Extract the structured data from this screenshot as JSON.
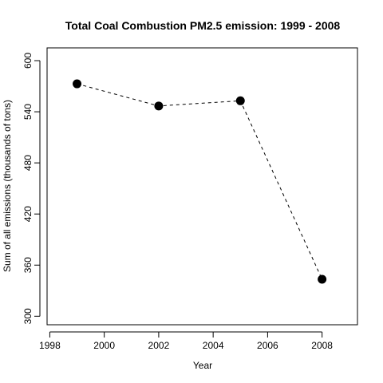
{
  "chart_data": {
    "type": "line",
    "title": "Total Coal Combustion PM2.5 emission: 1999 - 2008",
    "xlabel": "Year",
    "ylabel": "Sum of all emissions (thousands of tons)",
    "x": [
      1999,
      2002,
      2005,
      2008
    ],
    "y": [
      572.8,
      546.8,
      552.9,
      343.4
    ],
    "xlim": [
      1997.9,
      2009.3
    ],
    "ylim": [
      290,
      615
    ],
    "xticks": [
      1998,
      2000,
      2002,
      2004,
      2006,
      2008
    ],
    "yticks": [
      300,
      360,
      420,
      480,
      540,
      600
    ],
    "line_style": "dashed",
    "marker": "filled-circle",
    "grid": false,
    "colors": {
      "line": "#000000",
      "marker": "#000000",
      "axes": "#000000"
    }
  }
}
